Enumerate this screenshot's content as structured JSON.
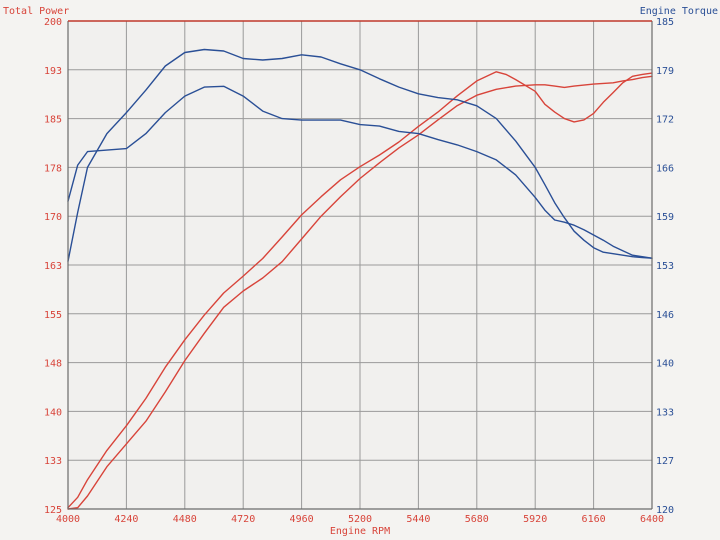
{
  "chart_data": {
    "type": "line",
    "xlabel": "Engine RPM",
    "ylabel_left": "Total Power",
    "ylabel_right": "Engine Torque",
    "x_ticks": [
      "4000",
      "4240",
      "4480",
      "4720",
      "4960",
      "5200",
      "5440",
      "5680",
      "5920",
      "6160",
      "6400"
    ],
    "y_left_ticks": [
      "125",
      "133",
      "140",
      "148",
      "155",
      "163",
      "170",
      "178",
      "185",
      "193",
      "200"
    ],
    "y_right_ticks": [
      "120",
      "127",
      "133",
      "140",
      "146",
      "153",
      "159",
      "166",
      "172",
      "179",
      "185"
    ],
    "xlim": [
      4000,
      6400
    ],
    "ylim_left": [
      125,
      200
    ],
    "ylim_right": [
      120,
      185
    ],
    "grid": true,
    "colors": {
      "power": "#d8443a",
      "torque": "#2a4f96",
      "grid": "#9a9a9a",
      "frame_top": "#c0392b"
    },
    "series": [
      {
        "axis": "left",
        "color": "#d8443a",
        "x": [
          4000,
          4040,
          4080,
          4160,
          4240,
          4320,
          4400,
          4480,
          4560,
          4640,
          4720,
          4800,
          4880,
          4960,
          5040,
          5120,
          5200,
          5280,
          5360,
          5440,
          5520,
          5600,
          5680,
          5760,
          5800,
          5840,
          5920,
          5960,
          6000,
          6040,
          6080,
          6120,
          6160,
          6200,
          6240,
          6280,
          6320,
          6360,
          6400
        ],
        "y": [
          125.2,
          126.8,
          129.5,
          134.0,
          137.8,
          142.0,
          146.8,
          151.0,
          154.8,
          158.2,
          160.8,
          163.5,
          166.8,
          170.2,
          173.0,
          175.6,
          177.6,
          179.4,
          181.4,
          183.8,
          186.0,
          188.5,
          190.8,
          192.2,
          191.8,
          191.0,
          189.2,
          187.2,
          186.0,
          185.0,
          184.5,
          184.8,
          185.8,
          187.5,
          189.0,
          190.5,
          191.5,
          191.8,
          192.0
        ]
      },
      {
        "axis": "left",
        "color": "#d8443a",
        "x": [
          4000,
          4040,
          4080,
          4160,
          4240,
          4320,
          4400,
          4480,
          4560,
          4640,
          4720,
          4800,
          4880,
          4960,
          5040,
          5120,
          5200,
          5280,
          5360,
          5440,
          5520,
          5600,
          5680,
          5760,
          5840,
          5920,
          5960,
          6000,
          6040,
          6080,
          6160,
          6240,
          6280,
          6320,
          6360,
          6400
        ],
        "y": [
          125.0,
          125.2,
          127.0,
          131.5,
          135.0,
          138.5,
          143.0,
          147.8,
          152.0,
          156.0,
          158.5,
          160.5,
          163.0,
          166.5,
          170.0,
          173.0,
          175.8,
          178.2,
          180.5,
          182.5,
          184.8,
          187.0,
          188.6,
          189.5,
          190.0,
          190.2,
          190.2,
          190.0,
          189.8,
          190.0,
          190.3,
          190.5,
          190.8,
          191.0,
          191.3,
          191.5
        ]
      },
      {
        "axis": "right",
        "color": "#2a4f96",
        "x": [
          4000,
          4040,
          4080,
          4160,
          4240,
          4320,
          4400,
          4480,
          4560,
          4640,
          4720,
          4800,
          4880,
          4960,
          5040,
          5120,
          5200,
          5280,
          5360,
          5440,
          5520,
          5600,
          5680,
          5760,
          5840,
          5920,
          5960,
          6000,
          6040,
          6080,
          6120,
          6160,
          6200,
          6240,
          6280,
          6320,
          6360,
          6400
        ],
        "y": [
          153.0,
          159.5,
          165.5,
          170.0,
          172.8,
          175.8,
          179.0,
          180.8,
          181.2,
          181.0,
          180.0,
          179.8,
          180.0,
          180.5,
          180.2,
          179.3,
          178.5,
          177.3,
          176.2,
          175.3,
          174.8,
          174.5,
          173.7,
          172.0,
          169.0,
          165.5,
          163.2,
          160.8,
          158.8,
          157.0,
          155.8,
          154.8,
          154.2,
          154.0,
          153.8,
          153.6,
          153.5,
          153.4
        ]
      },
      {
        "axis": "right",
        "color": "#2a4f96",
        "x": [
          4000,
          4040,
          4080,
          4160,
          4240,
          4320,
          4400,
          4480,
          4560,
          4640,
          4720,
          4800,
          4880,
          4960,
          5040,
          5120,
          5200,
          5280,
          5360,
          5440,
          5520,
          5600,
          5680,
          5760,
          5840,
          5920,
          5960,
          6000,
          6040,
          6080,
          6120,
          6160,
          6200,
          6240,
          6280,
          6320,
          6360,
          6400
        ],
        "y": [
          161.0,
          165.8,
          167.6,
          167.8,
          168.0,
          170.0,
          172.8,
          175.0,
          176.2,
          176.3,
          175.0,
          173.0,
          172.0,
          171.8,
          171.8,
          171.8,
          171.2,
          171.0,
          170.3,
          170.0,
          169.2,
          168.5,
          167.6,
          166.5,
          164.5,
          161.5,
          159.8,
          158.5,
          158.2,
          157.8,
          157.2,
          156.5,
          155.8,
          155.0,
          154.4,
          153.8,
          153.6,
          153.4
        ]
      }
    ]
  }
}
